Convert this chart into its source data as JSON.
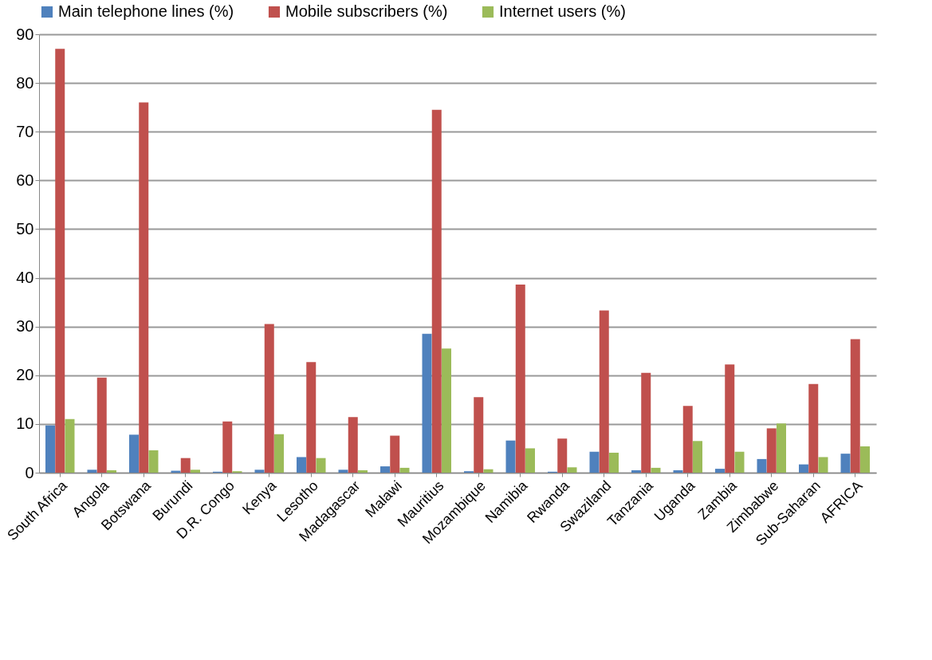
{
  "chart_data": {
    "type": "bar",
    "categories": [
      "South Africa",
      "Angola",
      "Botswana",
      "Burundi",
      "D.R. Congo",
      "Kenya",
      "Lesotho",
      "Madagascar",
      "Malawi",
      "Mauritius",
      "Mozambique",
      "Namibia",
      "Rwanda",
      "Swaziland",
      "Tanzania",
      "Uganda",
      "Zambia",
      "Zimbabwe",
      "Sub-Saharan",
      "AFRICA"
    ],
    "series": [
      {
        "name": "Main telephone lines (%)",
        "color": "#4f81bd",
        "values": [
          9.7,
          0.6,
          7.8,
          0.4,
          0.2,
          0.6,
          3.2,
          0.6,
          1.3,
          28.5,
          0.3,
          6.6,
          0.2,
          4.3,
          0.5,
          0.5,
          0.8,
          2.8,
          1.7,
          3.9
        ]
      },
      {
        "name": "Mobile subscribers (%)",
        "color": "#c0504d",
        "values": [
          87,
          19.5,
          76,
          3,
          10.5,
          30.5,
          22.7,
          11.4,
          7.6,
          74.5,
          15.5,
          38.6,
          7.0,
          33.3,
          20.5,
          13.7,
          22.2,
          9.1,
          18.2,
          27.4
        ]
      },
      {
        "name": "Internet users (%)",
        "color": "#9bbb59",
        "values": [
          11,
          0.5,
          4.6,
          0.6,
          0.3,
          7.9,
          3.0,
          0.5,
          1.0,
          25.5,
          0.7,
          5.0,
          1.1,
          4.1,
          1.0,
          6.5,
          4.3,
          10.1,
          3.2,
          5.4
        ]
      }
    ],
    "ylim": [
      0,
      90
    ],
    "yticks": [
      0,
      10,
      20,
      30,
      40,
      50,
      60,
      70,
      80,
      90
    ],
    "grid": "y",
    "legend": "top"
  }
}
